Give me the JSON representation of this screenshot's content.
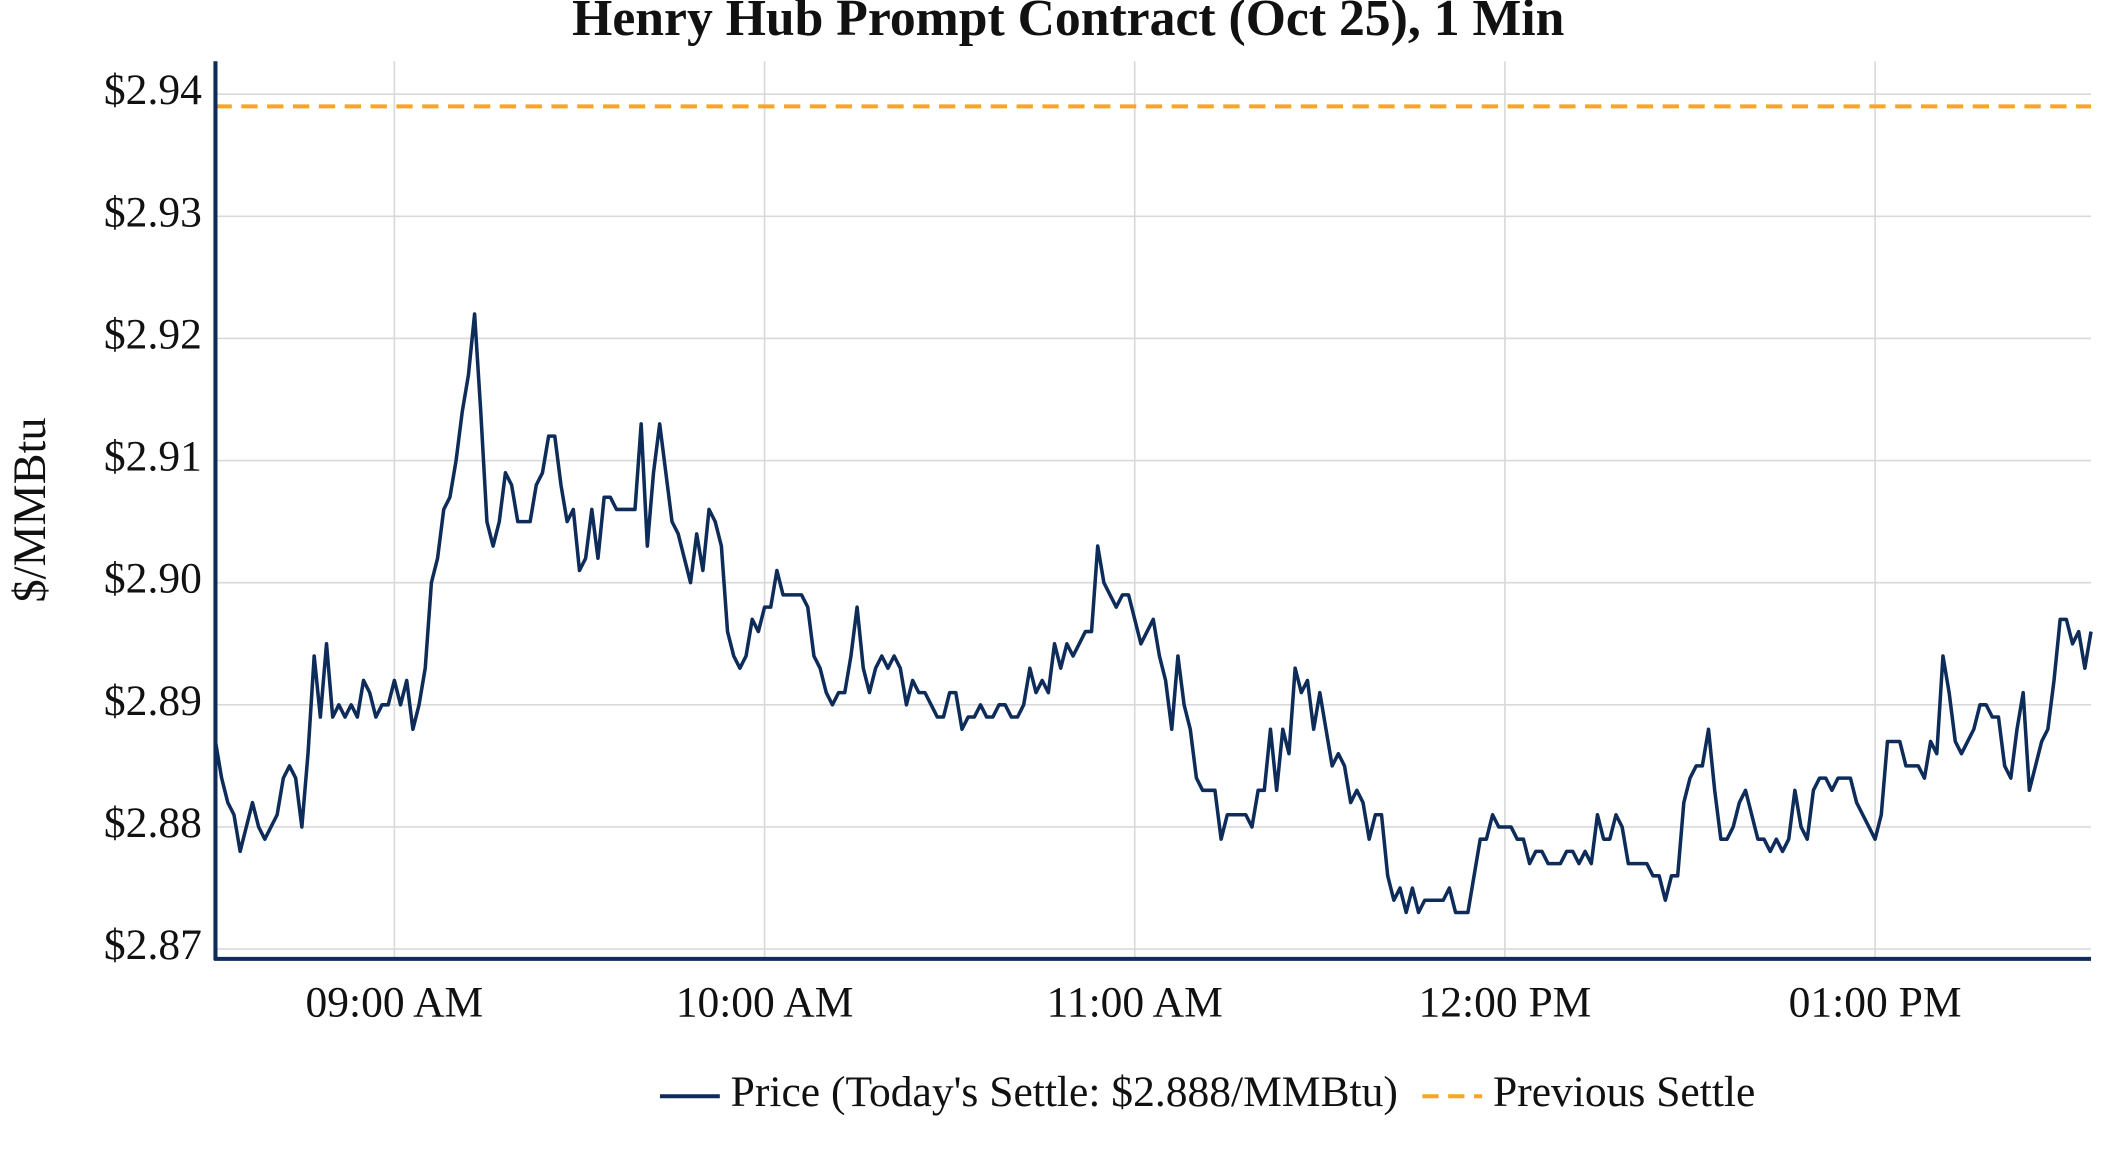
{
  "chart_data": {
    "type": "line",
    "title": "Henry Hub Prompt Contract (Oct 25), 1 Min",
    "y_label": "$/MMBtu",
    "x": [
      "08:31 AM",
      "08:32 AM",
      "08:33 AM",
      "08:34 AM",
      "08:35 AM",
      "08:36 AM",
      "08:37 AM",
      "08:38 AM",
      "08:39 AM",
      "08:40 AM",
      "08:41 AM",
      "08:42 AM",
      "08:43 AM",
      "08:44 AM",
      "08:45 AM",
      "08:46 AM",
      "08:47 AM",
      "08:48 AM",
      "08:49 AM",
      "08:50 AM",
      "08:51 AM",
      "08:52 AM",
      "08:53 AM",
      "08:54 AM",
      "08:55 AM",
      "08:56 AM",
      "08:57 AM",
      "08:58 AM",
      "08:59 AM",
      "09:00 AM",
      "09:01 AM",
      "09:02 AM",
      "09:03 AM",
      "09:04 AM",
      "09:05 AM",
      "09:06 AM",
      "09:07 AM",
      "09:08 AM",
      "09:09 AM",
      "09:10 AM",
      "09:11 AM",
      "09:12 AM",
      "09:13 AM",
      "09:14 AM",
      "09:15 AM",
      "09:16 AM",
      "09:17 AM",
      "09:18 AM",
      "09:19 AM",
      "09:20 AM",
      "09:21 AM",
      "09:22 AM",
      "09:23 AM",
      "09:24 AM",
      "09:25 AM",
      "09:26 AM",
      "09:27 AM",
      "09:28 AM",
      "09:29 AM",
      "09:30 AM",
      "09:31 AM",
      "09:32 AM",
      "09:33 AM",
      "09:34 AM",
      "09:35 AM",
      "09:36 AM",
      "09:37 AM",
      "09:38 AM",
      "09:39 AM",
      "09:40 AM",
      "09:41 AM",
      "09:42 AM",
      "09:43 AM",
      "09:44 AM",
      "09:45 AM",
      "09:46 AM",
      "09:47 AM",
      "09:48 AM",
      "09:49 AM",
      "09:50 AM",
      "09:51 AM",
      "09:52 AM",
      "09:53 AM",
      "09:54 AM",
      "09:55 AM",
      "09:56 AM",
      "09:57 AM",
      "09:58 AM",
      "09:59 AM",
      "10:00 AM",
      "10:01 AM",
      "10:02 AM",
      "10:03 AM",
      "10:04 AM",
      "10:05 AM",
      "10:06 AM",
      "10:07 AM",
      "10:08 AM",
      "10:09 AM",
      "10:10 AM",
      "10:11 AM",
      "10:12 AM",
      "10:13 AM",
      "10:14 AM",
      "10:15 AM",
      "10:16 AM",
      "10:17 AM",
      "10:18 AM",
      "10:19 AM",
      "10:20 AM",
      "10:21 AM",
      "10:22 AM",
      "10:23 AM",
      "10:24 AM",
      "10:25 AM",
      "10:26 AM",
      "10:27 AM",
      "10:28 AM",
      "10:29 AM",
      "10:30 AM",
      "10:31 AM",
      "10:32 AM",
      "10:33 AM",
      "10:34 AM",
      "10:35 AM",
      "10:36 AM",
      "10:37 AM",
      "10:38 AM",
      "10:39 AM",
      "10:40 AM",
      "10:41 AM",
      "10:42 AM",
      "10:43 AM",
      "10:44 AM",
      "10:45 AM",
      "10:46 AM",
      "10:47 AM",
      "10:48 AM",
      "10:49 AM",
      "10:50 AM",
      "10:51 AM",
      "10:52 AM",
      "10:53 AM",
      "10:54 AM",
      "10:55 AM",
      "10:56 AM",
      "10:57 AM",
      "10:58 AM",
      "10:59 AM",
      "11:00 AM",
      "11:01 AM",
      "11:02 AM",
      "11:03 AM",
      "11:04 AM",
      "11:05 AM",
      "11:06 AM",
      "11:07 AM",
      "11:08 AM",
      "11:09 AM",
      "11:10 AM",
      "11:11 AM",
      "11:12 AM",
      "11:13 AM",
      "11:14 AM",
      "11:15 AM",
      "11:16 AM",
      "11:17 AM",
      "11:18 AM",
      "11:19 AM",
      "11:20 AM",
      "11:21 AM",
      "11:22 AM",
      "11:23 AM",
      "11:24 AM",
      "11:25 AM",
      "11:26 AM",
      "11:27 AM",
      "11:28 AM",
      "11:29 AM",
      "11:30 AM",
      "11:31 AM",
      "11:32 AM",
      "11:33 AM",
      "11:34 AM",
      "11:35 AM",
      "11:36 AM",
      "11:37 AM",
      "11:38 AM",
      "11:39 AM",
      "11:40 AM",
      "11:41 AM",
      "11:42 AM",
      "11:43 AM",
      "11:44 AM",
      "11:45 AM",
      "11:46 AM",
      "11:47 AM",
      "11:48 AM",
      "11:49 AM",
      "11:50 AM",
      "11:51 AM",
      "11:52 AM",
      "11:53 AM",
      "11:54 AM",
      "11:55 AM",
      "11:56 AM",
      "11:57 AM",
      "11:58 AM",
      "11:59 AM",
      "12:00 PM",
      "12:01 PM",
      "12:02 PM",
      "12:03 PM",
      "12:04 PM",
      "12:05 PM",
      "12:06 PM",
      "12:07 PM",
      "12:08 PM",
      "12:09 PM",
      "12:10 PM",
      "12:11 PM",
      "12:12 PM",
      "12:13 PM",
      "12:14 PM",
      "12:15 PM",
      "12:16 PM",
      "12:17 PM",
      "12:18 PM",
      "12:19 PM",
      "12:20 PM",
      "12:21 PM",
      "12:22 PM",
      "12:23 PM",
      "12:24 PM",
      "12:25 PM",
      "12:26 PM",
      "12:27 PM",
      "12:28 PM",
      "12:29 PM",
      "12:30 PM",
      "12:31 PM",
      "12:32 PM",
      "12:33 PM",
      "12:34 PM",
      "12:35 PM",
      "12:36 PM",
      "12:37 PM",
      "12:38 PM",
      "12:39 PM",
      "12:40 PM",
      "12:41 PM",
      "12:42 PM",
      "12:43 PM",
      "12:44 PM",
      "12:45 PM",
      "12:46 PM",
      "12:47 PM",
      "12:48 PM",
      "12:49 PM",
      "12:50 PM",
      "12:51 PM",
      "12:52 PM",
      "12:53 PM",
      "12:54 PM",
      "12:55 PM",
      "12:56 PM",
      "12:57 PM",
      "12:58 PM",
      "12:59 PM",
      "01:00 PM",
      "01:01 PM",
      "01:02 PM",
      "01:03 PM",
      "01:04 PM",
      "01:05 PM",
      "01:06 PM",
      "01:07 PM",
      "01:08 PM",
      "01:09 PM",
      "01:10 PM",
      "01:11 PM",
      "01:12 PM",
      "01:13 PM",
      "01:14 PM",
      "01:15 PM",
      "01:16 PM",
      "01:17 PM",
      "01:18 PM",
      "01:19 PM",
      "01:20 PM",
      "01:21 PM",
      "01:22 PM",
      "01:23 PM",
      "01:24 PM",
      "01:25 PM",
      "01:26 PM",
      "01:27 PM",
      "01:28 PM",
      "01:29 PM",
      "01:30 PM",
      "01:31 PM",
      "01:32 PM",
      "01:33 PM",
      "01:34 PM",
      "01:35 PM"
    ],
    "series": [
      {
        "name": "Price (Today's Settle: $2.888/MMBtu)",
        "color": "#0e2c5a",
        "values": [
          2.887,
          2.884,
          2.882,
          2.881,
          2.878,
          2.88,
          2.882,
          2.88,
          2.879,
          2.88,
          2.881,
          2.884,
          2.885,
          2.884,
          2.88,
          2.886,
          2.894,
          2.889,
          2.895,
          2.889,
          2.89,
          2.889,
          2.89,
          2.889,
          2.892,
          2.891,
          2.889,
          2.89,
          2.89,
          2.892,
          2.89,
          2.892,
          2.888,
          2.89,
          2.893,
          2.9,
          2.902,
          2.906,
          2.907,
          2.91,
          2.914,
          2.917,
          2.922,
          2.914,
          2.905,
          2.903,
          2.905,
          2.909,
          2.908,
          2.905,
          2.905,
          2.905,
          2.908,
          2.909,
          2.912,
          2.912,
          2.908,
          2.905,
          2.906,
          2.901,
          2.902,
          2.906,
          2.902,
          2.907,
          2.907,
          2.906,
          2.906,
          2.906,
          2.906,
          2.913,
          2.903,
          2.909,
          2.913,
          2.909,
          2.905,
          2.904,
          2.902,
          2.9,
          2.904,
          2.901,
          2.906,
          2.905,
          2.903,
          2.896,
          2.894,
          2.893,
          2.894,
          2.897,
          2.896,
          2.898,
          2.898,
          2.901,
          2.899,
          2.899,
          2.899,
          2.899,
          2.898,
          2.894,
          2.893,
          2.891,
          2.89,
          2.891,
          2.891,
          2.894,
          2.898,
          2.893,
          2.891,
          2.893,
          2.894,
          2.893,
          2.894,
          2.893,
          2.89,
          2.892,
          2.891,
          2.891,
          2.89,
          2.889,
          2.889,
          2.891,
          2.891,
          2.888,
          2.889,
          2.889,
          2.89,
          2.889,
          2.889,
          2.89,
          2.89,
          2.889,
          2.889,
          2.89,
          2.893,
          2.891,
          2.892,
          2.891,
          2.895,
          2.893,
          2.895,
          2.894,
          2.895,
          2.896,
          2.896,
          2.903,
          2.9,
          2.899,
          2.898,
          2.899,
          2.899,
          2.897,
          2.895,
          2.896,
          2.897,
          2.894,
          2.892,
          2.888,
          2.894,
          2.89,
          2.888,
          2.884,
          2.883,
          2.883,
          2.883,
          2.879,
          2.881,
          2.881,
          2.881,
          2.881,
          2.88,
          2.883,
          2.883,
          2.888,
          2.883,
          2.888,
          2.886,
          2.893,
          2.891,
          2.892,
          2.888,
          2.891,
          2.888,
          2.885,
          2.886,
          2.885,
          2.882,
          2.883,
          2.882,
          2.879,
          2.881,
          2.881,
          2.876,
          2.874,
          2.875,
          2.873,
          2.875,
          2.873,
          2.874,
          2.874,
          2.874,
          2.874,
          2.875,
          2.873,
          2.873,
          2.873,
          2.876,
          2.879,
          2.879,
          2.881,
          2.88,
          2.88,
          2.88,
          2.879,
          2.879,
          2.877,
          2.878,
          2.878,
          2.877,
          2.877,
          2.877,
          2.878,
          2.878,
          2.877,
          2.878,
          2.877,
          2.881,
          2.879,
          2.879,
          2.881,
          2.88,
          2.877,
          2.877,
          2.877,
          2.877,
          2.876,
          2.876,
          2.874,
          2.876,
          2.876,
          2.882,
          2.884,
          2.885,
          2.885,
          2.888,
          2.883,
          2.879,
          2.879,
          2.88,
          2.882,
          2.883,
          2.881,
          2.879,
          2.879,
          2.878,
          2.879,
          2.878,
          2.879,
          2.883,
          2.88,
          2.879,
          2.883,
          2.884,
          2.884,
          2.883,
          2.884,
          2.884,
          2.884,
          2.882,
          2.881,
          2.88,
          2.879,
          2.881,
          2.887,
          2.887,
          2.887,
          2.885,
          2.885,
          2.885,
          2.884,
          2.887,
          2.886,
          2.894,
          2.891,
          2.887,
          2.886,
          2.887,
          2.888,
          2.89,
          2.89,
          2.889,
          2.889,
          2.885,
          2.884,
          2.888,
          2.891,
          2.883,
          2.885,
          2.887,
          2.888,
          2.892,
          2.897,
          2.897,
          2.895,
          2.896,
          2.893,
          2.896
        ]
      }
    ],
    "reference_lines": [
      {
        "name": "Previous Settle",
        "value": 2.939,
        "color": "#f5a623",
        "dashed": true
      }
    ],
    "xlim": [
      "08:31 AM",
      "01:35 PM"
    ],
    "xticks": [
      "09:00 AM",
      "10:00 AM",
      "11:00 AM",
      "12:00 PM",
      "01:00 PM"
    ],
    "ylim": [
      2.8692,
      2.9427
    ],
    "yticks": [
      {
        "value": 2.87,
        "label": "$2.87"
      },
      {
        "value": 2.88,
        "label": "$2.88"
      },
      {
        "value": 2.89,
        "label": "$2.89"
      },
      {
        "value": 2.9,
        "label": "$2.90"
      },
      {
        "value": 2.91,
        "label": "$2.91"
      },
      {
        "value": 2.92,
        "label": "$2.92"
      },
      {
        "value": 2.93,
        "label": "$2.93"
      },
      {
        "value": 2.94,
        "label": "$2.94"
      }
    ],
    "grid": true,
    "legend": "bottom"
  }
}
